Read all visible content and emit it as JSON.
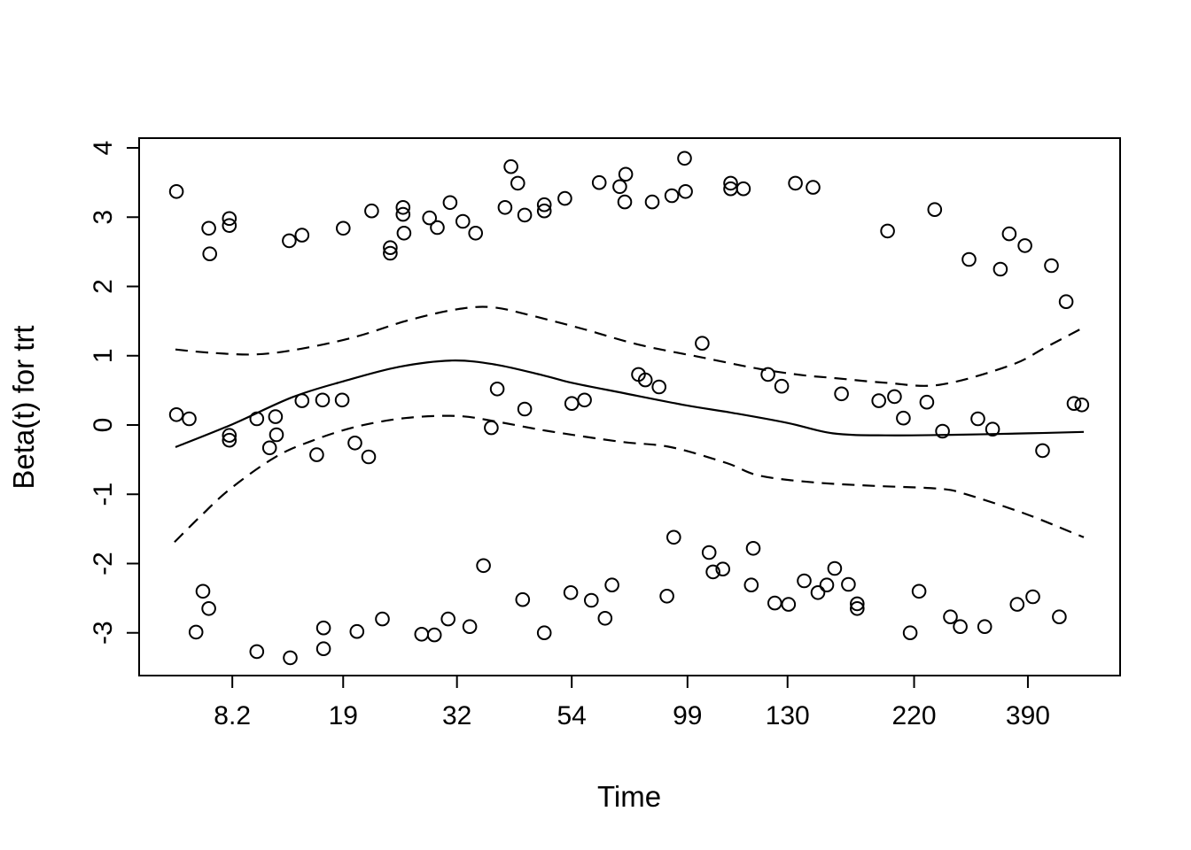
{
  "figure": {
    "background": "#ffffff",
    "foreground": "#000000"
  },
  "chart_data": {
    "type": "scatter",
    "description": "Schoenfeld-residual diagnostic plot: open-circle residuals, solid spline smooth of Beta(t), dashed upper/lower confidence bands",
    "title": "",
    "xlabel": "Time",
    "ylabel": "Beta(t) for trt",
    "grid": "off",
    "legend": "none",
    "marker": "open-circle",
    "x_axis": {
      "scale": "nonlinear transformed survival time (positions are fractions across plot width)",
      "ticks": [
        {
          "label": "8.2",
          "pos": 0.095
        },
        {
          "label": "19",
          "pos": 0.208
        },
        {
          "label": "32",
          "pos": 0.324
        },
        {
          "label": "54",
          "pos": 0.441
        },
        {
          "label": "99",
          "pos": 0.559
        },
        {
          "label": "130",
          "pos": 0.661
        },
        {
          "label": "220",
          "pos": 0.79
        },
        {
          "label": "390",
          "pos": 0.906
        }
      ]
    },
    "y_axis": {
      "range": [
        -3.617,
        4.141
      ],
      "ticks": [
        {
          "label": "-3",
          "value": -3
        },
        {
          "label": "-2",
          "value": -2
        },
        {
          "label": "-1",
          "value": -1
        },
        {
          "label": "0",
          "value": 0
        },
        {
          "label": "1",
          "value": 1
        },
        {
          "label": "2",
          "value": 2
        },
        {
          "label": "3",
          "value": 3
        },
        {
          "label": "4",
          "value": 4
        }
      ]
    },
    "series": {
      "residual_points": {
        "style": "open circles",
        "points": [
          [
            0.038,
            3.37
          ],
          [
            0.071,
            2.84
          ],
          [
            0.092,
            2.98
          ],
          [
            0.092,
            2.88
          ],
          [
            0.072,
            2.47
          ],
          [
            0.153,
            2.66
          ],
          [
            0.166,
            2.74
          ],
          [
            0.208,
            2.84
          ],
          [
            0.237,
            3.09
          ],
          [
            0.269,
            3.14
          ],
          [
            0.269,
            3.04
          ],
          [
            0.27,
            2.77
          ],
          [
            0.256,
            2.56
          ],
          [
            0.256,
            2.48
          ],
          [
            0.296,
            2.99
          ],
          [
            0.304,
            2.85
          ],
          [
            0.317,
            3.21
          ],
          [
            0.33,
            2.94
          ],
          [
            0.343,
            2.77
          ],
          [
            0.379,
            3.73
          ],
          [
            0.386,
            3.49
          ],
          [
            0.373,
            3.14
          ],
          [
            0.393,
            3.03
          ],
          [
            0.413,
            3.18
          ],
          [
            0.413,
            3.09
          ],
          [
            0.434,
            3.27
          ],
          [
            0.469,
            3.5
          ],
          [
            0.49,
            3.44
          ],
          [
            0.496,
            3.62
          ],
          [
            0.495,
            3.22
          ],
          [
            0.523,
            3.22
          ],
          [
            0.543,
            3.31
          ],
          [
            0.557,
            3.37
          ],
          [
            0.556,
            3.85
          ],
          [
            0.603,
            3.49
          ],
          [
            0.603,
            3.41
          ],
          [
            0.616,
            3.41
          ],
          [
            0.669,
            3.49
          ],
          [
            0.687,
            3.43
          ],
          [
            0.763,
            2.8
          ],
          [
            0.811,
            3.11
          ],
          [
            0.846,
            2.39
          ],
          [
            0.878,
            2.25
          ],
          [
            0.887,
            2.76
          ],
          [
            0.903,
            2.59
          ],
          [
            0.93,
            2.3
          ],
          [
            0.945,
            1.78
          ],
          [
            0.038,
            0.15
          ],
          [
            0.051,
            0.09
          ],
          [
            0.092,
            -0.15
          ],
          [
            0.092,
            -0.22
          ],
          [
            0.12,
            0.09
          ],
          [
            0.139,
            0.12
          ],
          [
            0.14,
            -0.14
          ],
          [
            0.133,
            -0.33
          ],
          [
            0.166,
            0.35
          ],
          [
            0.187,
            0.36
          ],
          [
            0.207,
            0.36
          ],
          [
            0.181,
            -0.43
          ],
          [
            0.22,
            -0.26
          ],
          [
            0.234,
            -0.46
          ],
          [
            0.365,
            0.52
          ],
          [
            0.359,
            -0.04
          ],
          [
            0.393,
            0.23
          ],
          [
            0.441,
            0.31
          ],
          [
            0.454,
            0.36
          ],
          [
            0.509,
            0.73
          ],
          [
            0.516,
            0.65
          ],
          [
            0.53,
            0.55
          ],
          [
            0.574,
            1.18
          ],
          [
            0.641,
            0.73
          ],
          [
            0.655,
            0.56
          ],
          [
            0.716,
            0.45
          ],
          [
            0.754,
            0.35
          ],
          [
            0.77,
            0.41
          ],
          [
            0.779,
            0.1
          ],
          [
            0.803,
            0.33
          ],
          [
            0.819,
            -0.09
          ],
          [
            0.855,
            0.09
          ],
          [
            0.87,
            -0.06
          ],
          [
            0.921,
            -0.37
          ],
          [
            0.953,
            0.31
          ],
          [
            0.961,
            0.29
          ],
          [
            0.065,
            -2.4
          ],
          [
            0.071,
            -2.65
          ],
          [
            0.058,
            -2.99
          ],
          [
            0.12,
            -3.27
          ],
          [
            0.154,
            -3.36
          ],
          [
            0.188,
            -2.93
          ],
          [
            0.188,
            -3.23
          ],
          [
            0.222,
            -2.98
          ],
          [
            0.248,
            -2.8
          ],
          [
            0.288,
            -3.02
          ],
          [
            0.301,
            -3.03
          ],
          [
            0.315,
            -2.8
          ],
          [
            0.337,
            -2.91
          ],
          [
            0.351,
            -2.03
          ],
          [
            0.391,
            -2.52
          ],
          [
            0.413,
            -3.0
          ],
          [
            0.44,
            -2.42
          ],
          [
            0.461,
            -2.53
          ],
          [
            0.482,
            -2.31
          ],
          [
            0.475,
            -2.79
          ],
          [
            0.538,
            -2.47
          ],
          [
            0.545,
            -1.62
          ],
          [
            0.581,
            -1.84
          ],
          [
            0.585,
            -2.12
          ],
          [
            0.595,
            -2.08
          ],
          [
            0.626,
            -1.78
          ],
          [
            0.624,
            -2.31
          ],
          [
            0.648,
            -2.57
          ],
          [
            0.662,
            -2.59
          ],
          [
            0.678,
            -2.25
          ],
          [
            0.692,
            -2.42
          ],
          [
            0.701,
            -2.31
          ],
          [
            0.709,
            -2.07
          ],
          [
            0.723,
            -2.3
          ],
          [
            0.732,
            -2.58
          ],
          [
            0.732,
            -2.65
          ],
          [
            0.786,
            -3.0
          ],
          [
            0.795,
            -2.4
          ],
          [
            0.827,
            -2.77
          ],
          [
            0.837,
            -2.91
          ],
          [
            0.862,
            -2.91
          ],
          [
            0.895,
            -2.59
          ],
          [
            0.911,
            -2.48
          ],
          [
            0.938,
            -2.77
          ]
        ]
      },
      "smooth_line": {
        "style": "solid",
        "points": [
          [
            0.037,
            -0.32
          ],
          [
            0.095,
            0.01
          ],
          [
            0.156,
            0.4
          ],
          [
            0.208,
            0.63
          ],
          [
            0.265,
            0.84
          ],
          [
            0.319,
            0.93
          ],
          [
            0.364,
            0.87
          ],
          [
            0.411,
            0.72
          ],
          [
            0.441,
            0.61
          ],
          [
            0.494,
            0.46
          ],
          [
            0.559,
            0.28
          ],
          [
            0.603,
            0.18
          ],
          [
            0.661,
            0.03
          ],
          [
            0.707,
            -0.12
          ],
          [
            0.761,
            -0.15
          ],
          [
            0.834,
            -0.14
          ],
          [
            0.906,
            -0.12
          ],
          [
            0.963,
            -0.1
          ]
        ]
      },
      "upper_band": {
        "style": "dashed",
        "points": [
          [
            0.037,
            1.09
          ],
          [
            0.075,
            1.04
          ],
          [
            0.12,
            1.02
          ],
          [
            0.165,
            1.1
          ],
          [
            0.22,
            1.27
          ],
          [
            0.274,
            1.51
          ],
          [
            0.324,
            1.67
          ],
          [
            0.36,
            1.7
          ],
          [
            0.4,
            1.58
          ],
          [
            0.454,
            1.38
          ],
          [
            0.509,
            1.16
          ],
          [
            0.572,
            0.98
          ],
          [
            0.632,
            0.81
          ],
          [
            0.676,
            0.72
          ],
          [
            0.707,
            0.68
          ],
          [
            0.761,
            0.61
          ],
          [
            0.816,
            0.58
          ],
          [
            0.888,
            0.86
          ],
          [
            0.924,
            1.12
          ],
          [
            0.963,
            1.41
          ]
        ]
      },
      "lower_band": {
        "style": "dashed",
        "points": [
          [
            0.036,
            -1.69
          ],
          [
            0.061,
            -1.34
          ],
          [
            0.093,
            -0.92
          ],
          [
            0.138,
            -0.47
          ],
          [
            0.174,
            -0.24
          ],
          [
            0.22,
            -0.03
          ],
          [
            0.271,
            0.1
          ],
          [
            0.324,
            0.13
          ],
          [
            0.364,
            0.05
          ],
          [
            0.418,
            -0.09
          ],
          [
            0.49,
            -0.24
          ],
          [
            0.542,
            -0.32
          ],
          [
            0.599,
            -0.55
          ],
          [
            0.632,
            -0.73
          ],
          [
            0.689,
            -0.83
          ],
          [
            0.752,
            -0.88
          ],
          [
            0.816,
            -0.92
          ],
          [
            0.843,
            -1.0
          ],
          [
            0.903,
            -1.28
          ],
          [
            0.954,
            -1.57
          ],
          [
            0.963,
            -1.62
          ]
        ]
      }
    }
  }
}
